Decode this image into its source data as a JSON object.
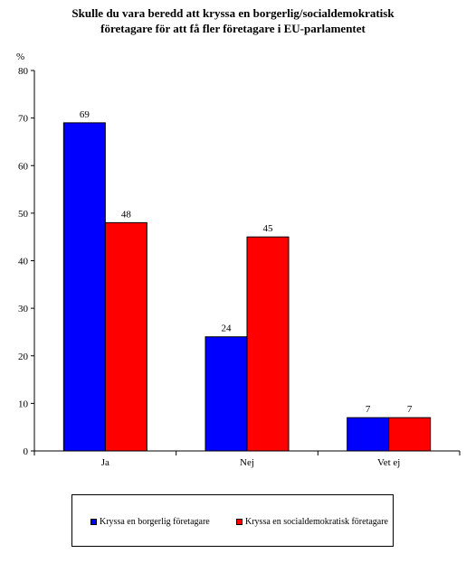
{
  "chart_data": {
    "type": "bar",
    "title_lines": [
      "Skulle du vara beredd att kryssa en borgerlig/socialdemokratisk",
      "företagare för att få fler företagare i EU-parlamentet"
    ],
    "ylabel": "%",
    "ylim": [
      0,
      80
    ],
    "yticks": [
      0,
      10,
      20,
      30,
      40,
      50,
      60,
      70,
      80
    ],
    "categories": [
      "Ja",
      "Nej",
      "Vet ej"
    ],
    "series": [
      {
        "name": "Kryssa en borgerlig företagare",
        "color": "#0000ff",
        "values": [
          69,
          24,
          7
        ]
      },
      {
        "name": "Kryssa en socialdemokratisk företagare",
        "color": "#ff0000",
        "values": [
          48,
          45,
          7
        ]
      }
    ],
    "grid": false,
    "legend_position": "bottom"
  }
}
